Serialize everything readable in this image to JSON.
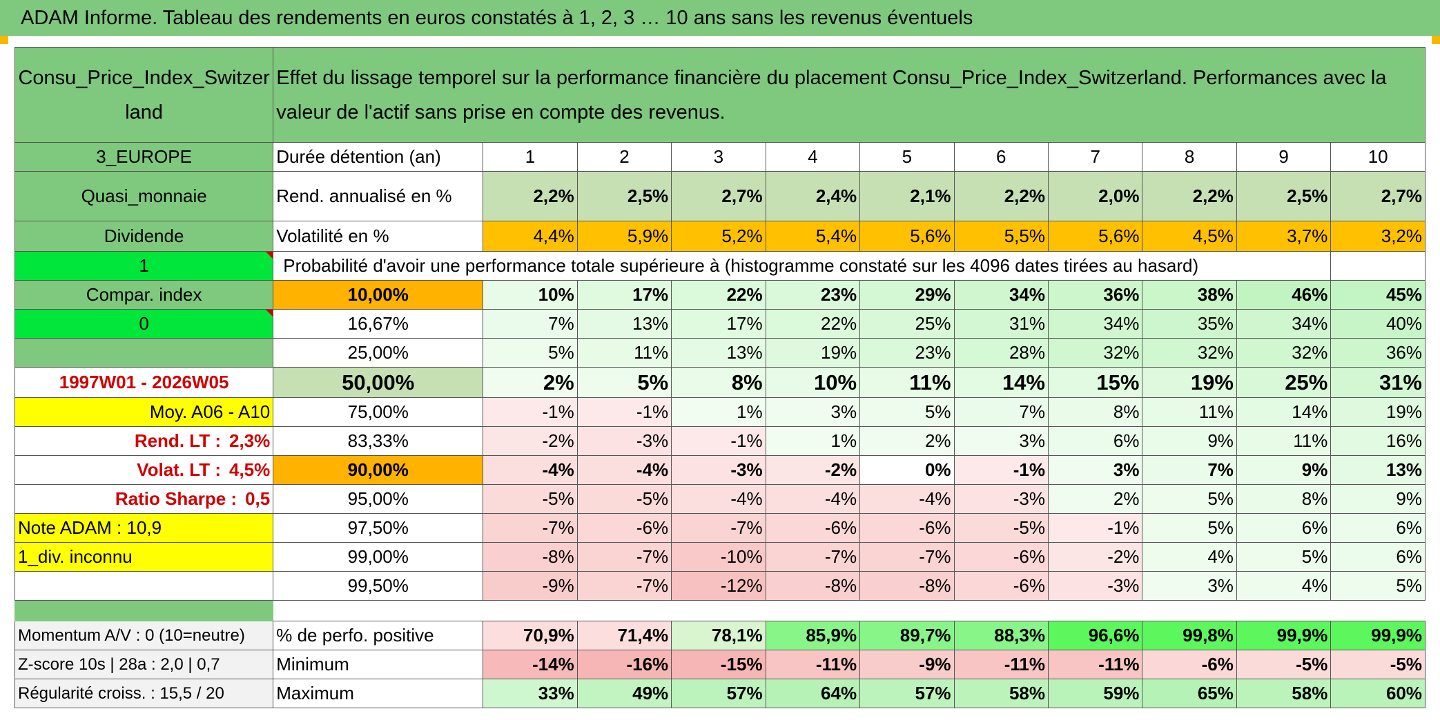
{
  "title": "ADAM Informe. Tableau des rendements en euros constatés à 1, 2, 3 … 10 ans sans les revenus éventuels",
  "header": {
    "asset_name": "Consu_Price_Index_Switzerland",
    "description": "Effet du lissage temporel sur la performance financière du placement Consu_Price_Index_Switzerland. Performances avec la valeur de l'actif sans prise en compte des revenus."
  },
  "left": {
    "region": "3_EUROPE",
    "category": "Quasi_monnaie",
    "dividend_label": "Dividende",
    "dividend_value": "1",
    "compar_index": "Compar. index",
    "compar_value": "0",
    "period": "1997W01 - 2026W05",
    "moy": "Moy. A06 - A10",
    "rend_lt_label": "Rend. LT :",
    "rend_lt_value": "2,3%",
    "volat_lt_label": "Volat. LT :",
    "volat_lt_value": "4,5%",
    "sharpe_label": "Ratio Sharpe :",
    "sharpe_value": "0,5",
    "note": "Note ADAM : 10,9",
    "div_info": "1_div. inconnu"
  },
  "rows": {
    "duration_label": "Durée détention (an)",
    "durations": [
      "1",
      "2",
      "3",
      "4",
      "5",
      "6",
      "7",
      "8",
      "9",
      "10"
    ],
    "rend_label": "Rend. annualisé en %",
    "rend": [
      "2,2%",
      "2,5%",
      "2,7%",
      "2,4%",
      "2,1%",
      "2,2%",
      "2,0%",
      "2,2%",
      "2,5%",
      "2,7%"
    ],
    "vol_label": "Volatilité en %",
    "vol": [
      "4,4%",
      "5,9%",
      "5,2%",
      "5,4%",
      "5,6%",
      "5,5%",
      "5,6%",
      "4,5%",
      "3,7%",
      "3,2%"
    ],
    "prob_title": "Probabilité d'avoir une performance totale supérieure à (histogramme constaté sur les 4096 dates tirées au hasard)"
  },
  "percentiles": [
    {
      "label": "10,00%",
      "values": [
        "10%",
        "17%",
        "22%",
        "23%",
        "29%",
        "34%",
        "36%",
        "38%",
        "46%",
        "45%"
      ]
    },
    {
      "label": "16,67%",
      "values": [
        "7%",
        "13%",
        "17%",
        "22%",
        "25%",
        "31%",
        "34%",
        "35%",
        "34%",
        "40%"
      ]
    },
    {
      "label": "25,00%",
      "values": [
        "5%",
        "11%",
        "13%",
        "19%",
        "23%",
        "28%",
        "32%",
        "32%",
        "32%",
        "36%"
      ]
    },
    {
      "label": "50,00%",
      "values": [
        "2%",
        "5%",
        "8%",
        "10%",
        "11%",
        "14%",
        "15%",
        "19%",
        "25%",
        "31%"
      ]
    },
    {
      "label": "75,00%",
      "values": [
        "-1%",
        "-1%",
        "1%",
        "3%",
        "5%",
        "7%",
        "8%",
        "11%",
        "14%",
        "19%"
      ]
    },
    {
      "label": "83,33%",
      "values": [
        "-2%",
        "-3%",
        "-1%",
        "1%",
        "2%",
        "3%",
        "6%",
        "9%",
        "11%",
        "16%"
      ]
    },
    {
      "label": "90,00%",
      "values": [
        "-4%",
        "-4%",
        "-3%",
        "-2%",
        "0%",
        "-1%",
        "3%",
        "7%",
        "9%",
        "13%"
      ]
    },
    {
      "label": "95,00%",
      "values": [
        "-5%",
        "-5%",
        "-4%",
        "-4%",
        "-4%",
        "-3%",
        "2%",
        "5%",
        "8%",
        "9%"
      ]
    },
    {
      "label": "97,50%",
      "values": [
        "-7%",
        "-6%",
        "-7%",
        "-6%",
        "-6%",
        "-5%",
        "-1%",
        "5%",
        "6%",
        "6%"
      ]
    },
    {
      "label": "99,00%",
      "values": [
        "-8%",
        "-7%",
        "-10%",
        "-7%",
        "-7%",
        "-6%",
        "-2%",
        "4%",
        "5%",
        "6%"
      ]
    },
    {
      "label": "99,50%",
      "values": [
        "-9%",
        "-7%",
        "-12%",
        "-8%",
        "-8%",
        "-6%",
        "-3%",
        "3%",
        "4%",
        "5%"
      ]
    }
  ],
  "bottom": {
    "momentum": "Momentum A/V : 0 (10=neutre)",
    "zscore": "Z-score 10s | 28a : 2,0 | 0,7",
    "regularite": "Régularité croiss. : 15,5 / 20",
    "pos_label": "% de perfo. positive",
    "pos": [
      "70,9%",
      "71,4%",
      "78,1%",
      "85,9%",
      "89,7%",
      "88,3%",
      "96,6%",
      "99,8%",
      "99,9%",
      "99,9%"
    ],
    "min_label": "Minimum",
    "min": [
      "-14%",
      "-16%",
      "-15%",
      "-11%",
      "-9%",
      "-11%",
      "-11%",
      "-6%",
      "-5%",
      "-5%"
    ],
    "max_label": "Maximum",
    "max": [
      "33%",
      "49%",
      "57%",
      "64%",
      "57%",
      "58%",
      "59%",
      "65%",
      "58%",
      "60%"
    ]
  },
  "colors": {
    "header_green": "#7ec97e",
    "light_green": "#c6e0b4",
    "gold": "#ffc000",
    "bright_green": "#00e63a",
    "yellow": "#ffff00",
    "red_text": "#d00000"
  }
}
